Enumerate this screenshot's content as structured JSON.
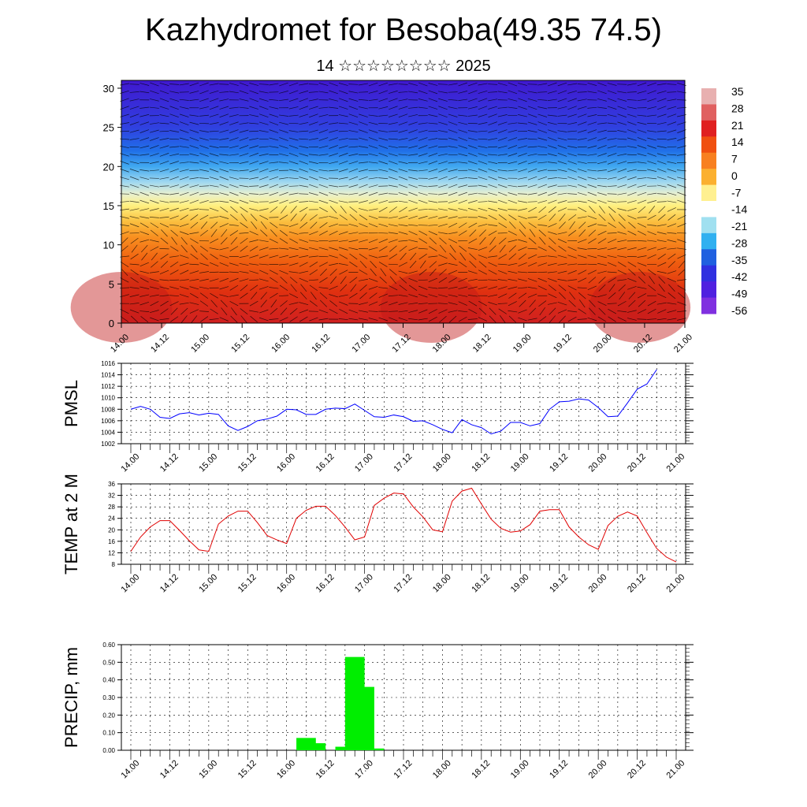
{
  "header": {
    "title": "Kazhydromet for Besoba(49.35 74.5)",
    "subtitle": "14 ☆☆☆☆☆☆☆☆ 2025"
  },
  "chart_data": [
    {
      "type": "heatmap",
      "name": "temperature-wind-cross-section",
      "title": "",
      "y_ticks": [
        0,
        5,
        10,
        15,
        20,
        25,
        30
      ],
      "ylim": [
        0,
        31
      ],
      "x_tick_labels": [
        "14.00",
        "14.12",
        "15.00",
        "15.12",
        "16.00",
        "16.12",
        "17.00",
        "17.12",
        "18.00",
        "18.12",
        "19.00",
        "19.12",
        "20.00",
        "20.12",
        "21.00"
      ],
      "colorbar": {
        "labels": [
          "35",
          "28",
          "21",
          "14",
          "7",
          "0",
          "-7",
          "-14",
          "-21",
          "-28",
          "-35",
          "-42",
          "-49",
          "-56"
        ],
        "colors": [
          "#e8b0b0",
          "#e06060",
          "#e02020",
          "#f05010",
          "#f88020",
          "#fbb030",
          "#fff090",
          "#ffffff",
          "#a0e0f0",
          "#30b0f0",
          "#2060e0",
          "#3030e0",
          "#5020e0",
          "#8030e0"
        ]
      },
      "profile": [
        {
          "level": 0,
          "color": "#d02020"
        },
        {
          "level": 4,
          "color": "#e03010"
        },
        {
          "level": 8,
          "color": "#f06010"
        },
        {
          "level": 11,
          "color": "#f89020"
        },
        {
          "level": 13,
          "color": "#fbc040"
        },
        {
          "level": 15,
          "color": "#fff080"
        },
        {
          "level": 16.5,
          "color": "#e8f0d0"
        },
        {
          "level": 18,
          "color": "#a0d8f0"
        },
        {
          "level": 20,
          "color": "#40a8f0"
        },
        {
          "level": 22,
          "color": "#2070e8"
        },
        {
          "level": 25,
          "color": "#3040e0"
        },
        {
          "level": 31,
          "color": "#4018d0"
        }
      ]
    },
    {
      "type": "line",
      "name": "pmsl",
      "ylabel": "PMSL",
      "ylim": [
        1002,
        1016
      ],
      "y_ticks": [
        1002,
        1004,
        1006,
        1008,
        1010,
        1012,
        1014,
        1016
      ],
      "x_tick_labels": [
        "14.00",
        "14.12",
        "15.00",
        "15.12",
        "16.00",
        "16.12",
        "17.00",
        "17.12",
        "18.00",
        "18.12",
        "19.00",
        "19.12",
        "20.00",
        "20.12",
        "21.00"
      ],
      "color": "#0000ff",
      "series": [
        {
          "values": [
            1008,
            1008.5,
            1008,
            1006.6,
            1006.4,
            1007.2,
            1007.4,
            1007,
            1007.3,
            1007.1,
            1005.1,
            1004.3,
            1005,
            1006,
            1006.3,
            1006.8,
            1008,
            1007.9,
            1007.1,
            1007.1,
            1008,
            1008.2,
            1008.1,
            1008.9,
            1007.8,
            1006.7,
            1006.6,
            1007,
            1006.7,
            1005.9,
            1006,
            1005.3,
            1004.5,
            1003.9,
            1006.2,
            1005.3,
            1004.8,
            1003.7,
            1004.2,
            1005.7,
            1005.7,
            1005.1,
            1005.5,
            1008,
            1009.3,
            1009.4,
            1009.8,
            1009.6,
            1008.3,
            1006.7,
            1006.8,
            1009.1,
            1011.5,
            1012.4,
            1014.9
          ]
        }
      ]
    },
    {
      "type": "line",
      "name": "temp-2m",
      "ylabel": "TEMP at 2 M",
      "ylim": [
        8,
        36
      ],
      "y_ticks": [
        8,
        12,
        16,
        20,
        24,
        28,
        32,
        36
      ],
      "x_tick_labels": [
        "14.00",
        "14.12",
        "15.00",
        "15.12",
        "16.00",
        "16.12",
        "17.00",
        "17.12",
        "18.00",
        "18.12",
        "19.00",
        "19.12",
        "20.00",
        "20.12",
        "21.00"
      ],
      "color": "#e00000",
      "series": [
        {
          "values": [
            12.5,
            17.5,
            21,
            23.2,
            23.2,
            19.8,
            16.2,
            13,
            12.5,
            22,
            24.8,
            26.5,
            26.5,
            22.5,
            18,
            16.5,
            15.2,
            24,
            26.8,
            28.2,
            28.2,
            25,
            21,
            16.5,
            17.5,
            28.5,
            31,
            32.8,
            32.5,
            28,
            24.5,
            20,
            19.3,
            30,
            33.5,
            34.5,
            29,
            23.7,
            20.5,
            19.2,
            19.6,
            21.8,
            26.5,
            27,
            27,
            21,
            17.5,
            14.8,
            13.2,
            21.5,
            24.7,
            26.2,
            24.8,
            19,
            13.5,
            10.5,
            8.8
          ]
        }
      ]
    },
    {
      "type": "bar",
      "name": "precip",
      "ylabel": "PRECIP, mm",
      "ylim": [
        0,
        0.6
      ],
      "y_ticks": [
        "0.00",
        "0.10",
        "0.20",
        "0.30",
        "0.40",
        "0.50",
        "0.60"
      ],
      "x_tick_labels": [
        "14.00",
        "14.12",
        "15.00",
        "15.12",
        "16.00",
        "16.12",
        "17.00",
        "17.12",
        "18.00",
        "18.12",
        "19.00",
        "19.12",
        "20.00",
        "20.12",
        "21.00"
      ],
      "color": "#00ee00",
      "bars": [
        {
          "x": 17.5,
          "value": 0.07
        },
        {
          "x": 18.5,
          "value": 0.04
        },
        {
          "x": 21.5,
          "value": 0.02
        },
        {
          "x": 22.5,
          "value": 0.53
        },
        {
          "x": 23.5,
          "value": 0.36
        },
        {
          "x": 24.5,
          "value": 0.01
        }
      ]
    }
  ]
}
